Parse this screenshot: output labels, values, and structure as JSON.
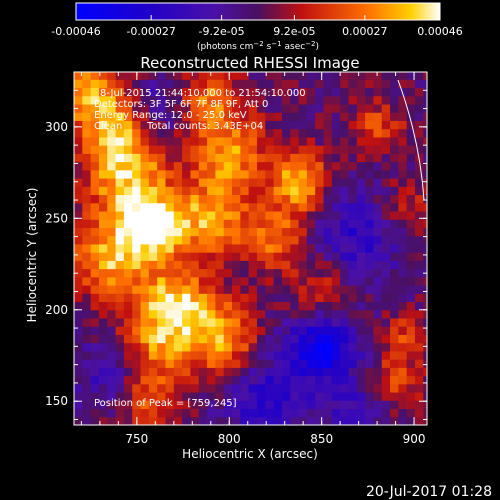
{
  "chart_data": {
    "type": "heatmap",
    "title": "Reconstructed RHESSI Image",
    "xlabel": "Heliocentric X (arcsec)",
    "ylabel": "Heliocentric Y (arcsec)",
    "xlim": [
      716,
      907
    ],
    "ylim": [
      137,
      330
    ],
    "x_ticks": [
      "750",
      "800",
      "850",
      "900"
    ],
    "y_ticks": [
      "150",
      "200",
      "250",
      "300"
    ],
    "x_tick_values": [
      750,
      800,
      850,
      900
    ],
    "y_tick_values": [
      150,
      200,
      250,
      300
    ],
    "colorbar": {
      "range": [
        -0.00046,
        0.00046
      ],
      "tick_labels": [
        "-0.00046",
        "-0.00027",
        "-9.2e-05",
        "9.2e-05",
        "0.00027",
        "0.00046"
      ],
      "tick_values": [
        -0.00046,
        -0.00027,
        -9.2e-05,
        9.2e-05,
        0.00027,
        0.00046
      ],
      "units_label": "(photons cm⁻² s⁻¹ asec⁻²)"
    },
    "peak": [
      759,
      245
    ],
    "annotations": {
      "time_range": "8-Jul-2015 21:44:10.000 to 21:54:10.000",
      "detectors": "Detectors: 3F 5F 6F 7F 8F 9F, Att 0",
      "energy_range": "Energy Range: 12.0 - 25.0 keV",
      "algorithm": "Clean",
      "total_counts": "Total counts: 3.43E+04",
      "peak_position": "Position of Peak = [759,245]"
    },
    "grid": false,
    "colormap": "blue-purple-red-yellow-white",
    "blobs": [
      {
        "x": 759,
        "y": 245,
        "amp": 1.0,
        "s": 12
      },
      {
        "x": 745,
        "y": 270,
        "amp": 0.8,
        "s": 16
      },
      {
        "x": 740,
        "y": 300,
        "amp": 0.75,
        "s": 14
      },
      {
        "x": 735,
        "y": 228,
        "amp": 0.8,
        "s": 14
      },
      {
        "x": 770,
        "y": 205,
        "amp": 0.85,
        "s": 14
      },
      {
        "x": 795,
        "y": 185,
        "amp": 0.75,
        "s": 14
      },
      {
        "x": 790,
        "y": 250,
        "amp": 0.75,
        "s": 14
      },
      {
        "x": 800,
        "y": 285,
        "amp": 0.7,
        "s": 14
      },
      {
        "x": 838,
        "y": 270,
        "amp": 0.85,
        "s": 11
      },
      {
        "x": 825,
        "y": 240,
        "amp": 0.6,
        "s": 12
      },
      {
        "x": 760,
        "y": 180,
        "amp": 0.6,
        "s": 14
      },
      {
        "x": 722,
        "y": 320,
        "amp": 0.7,
        "s": 12
      },
      {
        "x": 790,
        "y": 315,
        "amp": 0.6,
        "s": 12
      },
      {
        "x": 880,
        "y": 300,
        "amp": 0.45,
        "s": 10
      },
      {
        "x": 895,
        "y": 255,
        "amp": 0.4,
        "s": 10
      },
      {
        "x": 890,
        "y": 160,
        "amp": 0.45,
        "s": 10
      },
      {
        "x": 895,
        "y": 185,
        "amp": 0.4,
        "s": 9
      },
      {
        "x": 755,
        "y": 150,
        "amp": 0.45,
        "s": 12
      },
      {
        "x": 850,
        "y": 210,
        "amp": 0.45,
        "s": 12
      },
      {
        "x": 760,
        "y": 310,
        "amp": -0.45,
        "s": 11
      },
      {
        "x": 850,
        "y": 180,
        "amp": -0.85,
        "s": 14
      },
      {
        "x": 852,
        "y": 175,
        "amp": -0.35,
        "s": 5
      },
      {
        "x": 820,
        "y": 150,
        "amp": -0.55,
        "s": 16
      },
      {
        "x": 870,
        "y": 240,
        "amp": -0.5,
        "s": 18
      },
      {
        "x": 735,
        "y": 165,
        "amp": -0.4,
        "s": 14
      },
      {
        "x": 870,
        "y": 145,
        "amp": -0.4,
        "s": 12
      }
    ]
  },
  "footer": {
    "timestamp": "20-Jul-2017 01:28"
  }
}
